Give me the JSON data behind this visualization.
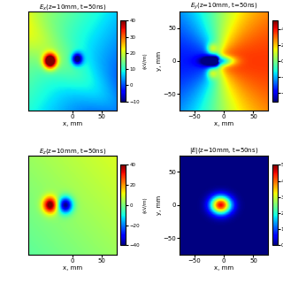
{
  "figsize": [
    3.2,
    3.2
  ],
  "dpi": 100,
  "panels": [
    {
      "title": "E_x(z=10mm, t=50ns)",
      "cbar_ticks": [
        -10,
        0,
        10,
        20,
        30,
        40
      ],
      "vmin": -10,
      "vmax": 40,
      "xlim": [
        -75,
        75
      ],
      "ylim": [
        -75,
        75
      ],
      "xticks": [
        0,
        50
      ],
      "yticks": [],
      "xlabel": "x, mm",
      "ylabel": ""
    },
    {
      "title": "E_y(z=10mm, t=50ns)",
      "cbar_ticks": [],
      "vmin": -50,
      "vmax": 50,
      "xlim": [
        -75,
        75
      ],
      "ylim": [
        -75,
        75
      ],
      "xticks": [
        -50,
        0,
        50
      ],
      "yticks": [
        -50,
        0,
        50
      ],
      "xlabel": "x, mm",
      "ylabel": "y, mm"
    },
    {
      "title": "E_z(z=10mm, t=50ns)",
      "cbar_ticks": [
        -40,
        -20,
        0,
        20,
        40
      ],
      "vmin": -40,
      "vmax": 40,
      "xlim": [
        -75,
        75
      ],
      "ylim": [
        -75,
        75
      ],
      "xticks": [
        0,
        50
      ],
      "yticks": [],
      "xlabel": "x, mm",
      "ylabel": ""
    },
    {
      "title": "|E|(z=10mm, t=50ns)",
      "cbar_ticks": [],
      "vmin": 0,
      "vmax": 50,
      "xlim": [
        -75,
        75
      ],
      "ylim": [
        -75,
        75
      ],
      "xticks": [
        -50,
        0,
        50
      ],
      "yticks": [
        -50,
        0,
        50
      ],
      "xlabel": "x, mm",
      "ylabel": "y, mm"
    }
  ],
  "cbar_label": "(kV/m)"
}
